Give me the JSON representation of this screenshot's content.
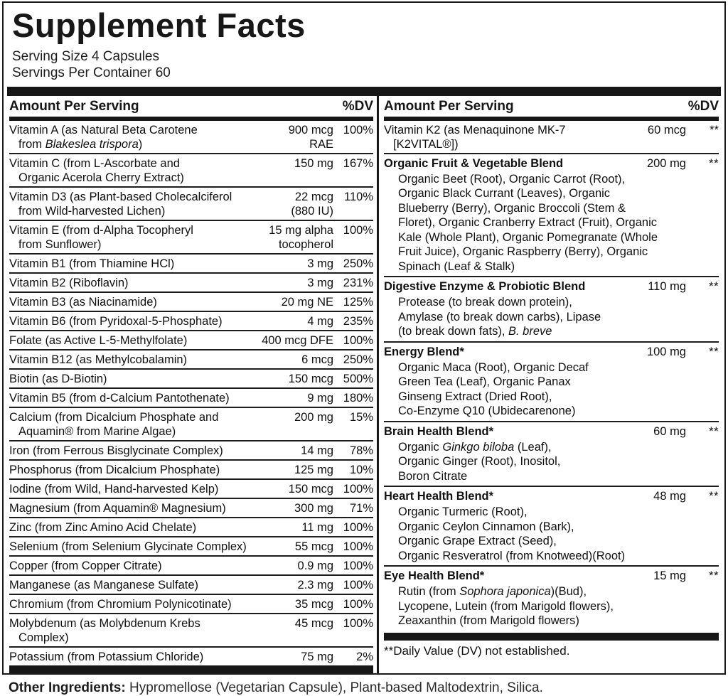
{
  "header": {
    "title": "Supplement Facts",
    "serving_size": "Serving Size 4 Capsules",
    "servings_per_container": "Servings Per Container 60"
  },
  "table": {
    "column_header": {
      "amount_label": "Amount Per Serving",
      "dv_label": "%DV"
    },
    "left_rows": [
      {
        "name_pre": "Vitamin A (as Natural Beta Carotene\nfrom ",
        "name_italic": "Blakeslea trispora",
        "name_post": ")",
        "amount": "900 mcg",
        "amount2": "RAE",
        "dv": "100%"
      },
      {
        "name_pre": "Vitamin C (from L-Ascorbate and\nOrganic Acerola Cherry Extract)",
        "amount": "150 mg",
        "dv": "167%"
      },
      {
        "name_pre": "Vitamin D3 (as Plant-based Cholecalciferol\nfrom Wild-harvested Lichen)",
        "amount": "22 mcg",
        "amount2": "(880 IU)",
        "dv": "110%"
      },
      {
        "name_pre": "Vitamin E (from d-Alpha Tocopheryl\nfrom Sunflower)",
        "amount": "15 mg alpha",
        "amount2": "tocopherol",
        "dv": "100%"
      },
      {
        "name_pre": "Vitamin B1 (from Thiamine HCl)",
        "amount": "3 mg",
        "dv": "250%"
      },
      {
        "name_pre": "Vitamin B2 (Riboflavin)",
        "amount": "3 mg",
        "dv": "231%"
      },
      {
        "name_pre": "Vitamin B3 (as Niacinamide)",
        "amount": "20 mg NE",
        "dv": "125%"
      },
      {
        "name_pre": "Vitamin B6 (from Pyridoxal-5-Phosphate)",
        "amount": "4 mg",
        "dv": "235%"
      },
      {
        "name_pre": "Folate (as Active L-5-Methylfolate)",
        "amount": "400 mcg DFE",
        "dv": "100%"
      },
      {
        "name_pre": "Vitamin B12 (as Methylcobalamin)",
        "amount": "6 mcg",
        "dv": "250%"
      },
      {
        "name_pre": "Biotin (as D-Biotin)",
        "amount": "150 mcg",
        "dv": "500%"
      },
      {
        "name_pre": "Vitamin B5 (from d-Calcium Pantothenate)",
        "amount": "9 mg",
        "dv": "180%"
      },
      {
        "name_pre": "Calcium (from Dicalcium Phosphate and\nAquamin® from Marine Algae)",
        "amount": "200 mg",
        "dv": "15%"
      },
      {
        "name_pre": "Iron (from Ferrous Bisglycinate Complex)",
        "amount": "14 mg",
        "dv": "78%"
      },
      {
        "name_pre": "Phosphorus (from Dicalcium Phosphate)",
        "amount": "125 mg",
        "dv": "10%"
      },
      {
        "name_pre": "Iodine (from Wild, Hand-harvested Kelp)",
        "amount": "150 mcg",
        "dv": "100%"
      },
      {
        "name_pre": "Magnesium (from Aquamin® Magnesium)",
        "amount": "300 mg",
        "dv": "71%"
      },
      {
        "name_pre": "Zinc (from Zinc Amino Acid Chelate)",
        "amount": "11 mg",
        "dv": "100%"
      },
      {
        "name_pre": "Selenium (from Selenium Glycinate Complex)",
        "amount": "55 mcg",
        "dv": "100%"
      },
      {
        "name_pre": "Copper (from Copper Citrate)",
        "amount": "0.9 mg",
        "dv": "100%"
      },
      {
        "name_pre": "Manganese (as Manganese Sulfate)",
        "amount": "2.3 mg",
        "dv": "100%"
      },
      {
        "name_pre": "Chromium (from Chromium Polynicotinate)",
        "amount": "35 mcg",
        "dv": "100%"
      },
      {
        "name_pre": "Molybdenum (as Molybdenum Krebs Complex)",
        "amount": "45 mcg",
        "dv": "100%"
      },
      {
        "name_pre": "Potassium (from Potassium Chloride)",
        "amount": "75 mg",
        "dv": "2%"
      }
    ],
    "right": {
      "k2_row": {
        "name_pre": "Vitamin K2 (as Menaquinone MK-7\n[K2VITAL®])",
        "amount": "60 mcg",
        "dv": "**"
      },
      "sections": [
        {
          "title": "Organic Fruit & Vegetable Blend",
          "amount": "200 mg",
          "dv": "**",
          "sub_pre": "Organic Beet (Root), Organic Carrot (Root),\nOrganic Black Currant (Leaves), Organic\nBlueberry (Berry), Organic Broccoli (Stem &\nFloret), Organic Cranberry Extract (Fruit), Organic\nKale (Whole Plant), Organic Pomegranate (Whole\nFruit Juice), Organic Raspberry (Berry), Organic\nSpinach (Leaf & Stalk)"
        },
        {
          "title": "Digestive Enzyme & Probiotic Blend",
          "amount": "110 mg",
          "dv": "**",
          "sub_pre": "Protease (to break down protein),\nAmylase (to break down carbs), Lipase\n(to break down fats), ",
          "sub_italic": "B. breve"
        },
        {
          "title": "Energy Blend*",
          "amount": "100 mg",
          "dv": "**",
          "sub_pre": "Organic Maca (Root), Organic Decaf\nGreen Tea (Leaf), Organic Panax\nGinseng Extract (Dried Root),\nCo-Enzyme Q10 (Ubidecarenone)"
        },
        {
          "title": "Brain Health Blend*",
          "amount": "60 mg",
          "dv": "**",
          "sub_pre": "Organic ",
          "sub_italic": "Ginkgo biloba",
          "sub_post": " (Leaf),\nOrganic Ginger (Root), Inositol,\nBoron Citrate"
        },
        {
          "title": "Heart Health Blend*",
          "amount": "48 mg",
          "dv": "**",
          "sub_pre": "Organic Turmeric (Root),\nOrganic Ceylon Cinnamon (Bark),\nOrganic Grape Extract (Seed),\nOrganic Resveratrol (from Knotweed)(Root)"
        },
        {
          "title": "Eye Health Blend*",
          "amount": "15 mg",
          "dv": "**",
          "sub_pre": "Rutin (from ",
          "sub_italic": "Sophora japonica",
          "sub_post": ")(Bud),\nLycopene, Lutein (from Marigold flowers),\nZeaxanthin (from Marigold flowers)"
        }
      ],
      "dv_note": "**Daily Value (DV) not established."
    }
  },
  "footer": {
    "other_ingredients_label": "Other Ingredients:",
    "other_ingredients_text": " Hypromellose (Vegetarian Capsule), Plant-based Maltodextrin, Silica."
  }
}
